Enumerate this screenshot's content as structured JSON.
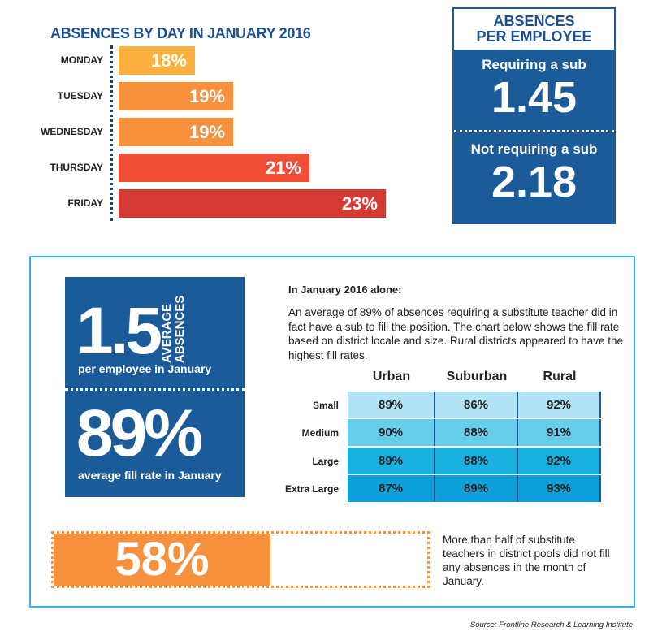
{
  "chart_data": {
    "type": "bar",
    "orientation": "horizontal",
    "title": "ABSENCES BY DAY IN JANUARY 2016",
    "categories": [
      "MONDAY",
      "TUESDAY",
      "WEDNESDAY",
      "THURSDAY",
      "FRIDAY"
    ],
    "values": [
      18,
      19,
      19,
      21,
      23
    ],
    "value_labels": [
      "18%",
      "19%",
      "19%",
      "21%",
      "23%"
    ],
    "colors": [
      "#fbb040",
      "#f7913d",
      "#f7913d",
      "#f04e37",
      "#d33a32"
    ]
  },
  "per_employee": {
    "title_lines": [
      "ABSENCES",
      "PER EMPLOYEE"
    ],
    "items": [
      {
        "label": "Requiring a sub",
        "value": "1.45"
      },
      {
        "label": "Not requiring a sub",
        "value": "2.18"
      }
    ]
  },
  "highlights": {
    "average": {
      "value": "1.5",
      "side_lines": [
        "AVERAGE",
        "ABSENCES"
      ],
      "caption": "per employee in January"
    },
    "fill": {
      "value": "89%",
      "caption": "average fill rate in January"
    }
  },
  "intro": {
    "heading": "In January 2016 alone:",
    "text": "An average of 89% of absences requiring a substitute teacher did in fact have a sub to fill the position. The chart below shows the fill rate based on district locale and size. Rural districts appeared to have the highest fill rates."
  },
  "table": {
    "columns": [
      "Urban",
      "Suburban",
      "Rural"
    ],
    "rows": [
      {
        "label": "Small",
        "cells": [
          "89%",
          "86%",
          "92%"
        ]
      },
      {
        "label": "Medium",
        "cells": [
          "90%",
          "88%",
          "91%"
        ]
      },
      {
        "label": "Large",
        "cells": [
          "89%",
          "88%",
          "92%"
        ]
      },
      {
        "label": "Extra Large",
        "cells": [
          "87%",
          "89%",
          "93%"
        ]
      }
    ]
  },
  "pool_stat": {
    "value": 58,
    "value_label": "58%",
    "xlim": [
      0,
      100
    ],
    "text": "More than half of substitute teachers in district pools did not fill any absences in the month of January."
  },
  "source": "Source: Frontline Research & Learning Institute"
}
